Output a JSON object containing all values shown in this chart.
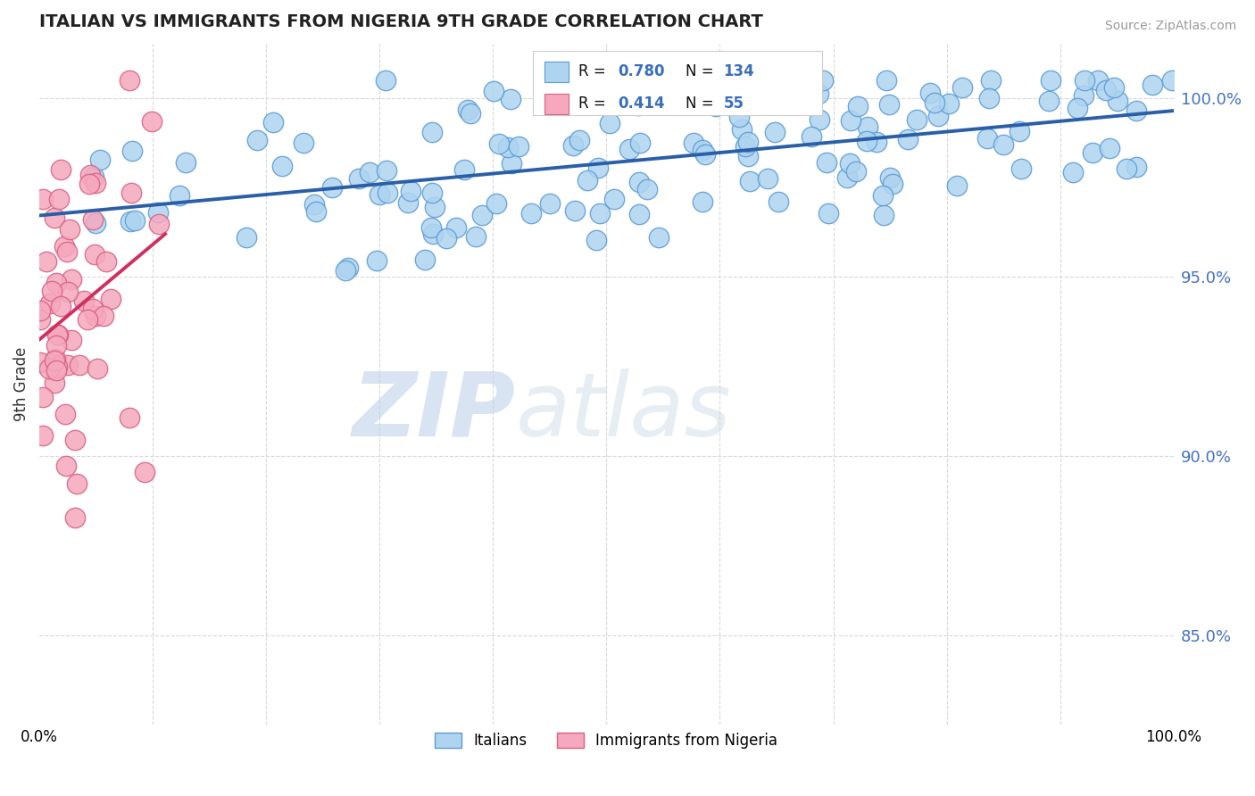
{
  "title": "ITALIAN VS IMMIGRANTS FROM NIGERIA 9TH GRADE CORRELATION CHART",
  "source_text": "Source: ZipAtlas.com",
  "ylabel": "9th Grade",
  "legend_blue_label": "Italians",
  "legend_pink_label": "Immigrants from Nigeria",
  "r_blue": 0.78,
  "n_blue": 134,
  "r_pink": 0.414,
  "n_pink": 55,
  "blue_color": "#aed4f0",
  "blue_edge": "#5b9bd5",
  "pink_color": "#f5a8be",
  "pink_edge": "#d96080",
  "trend_blue": "#2a5fa8",
  "trend_pink": "#d03060",
  "watermark_zip": "ZIP",
  "watermark_atlas": "atlas",
  "background_color": "#ffffff",
  "grid_color": "#d8d8d8",
  "ytick_labels": [
    "85.0%",
    "90.0%",
    "95.0%",
    "100.0%"
  ],
  "ytick_values": [
    0.85,
    0.9,
    0.95,
    1.0
  ],
  "ymin": 0.825,
  "ymax": 1.015,
  "xmin": 0.0,
  "xmax": 1.0
}
